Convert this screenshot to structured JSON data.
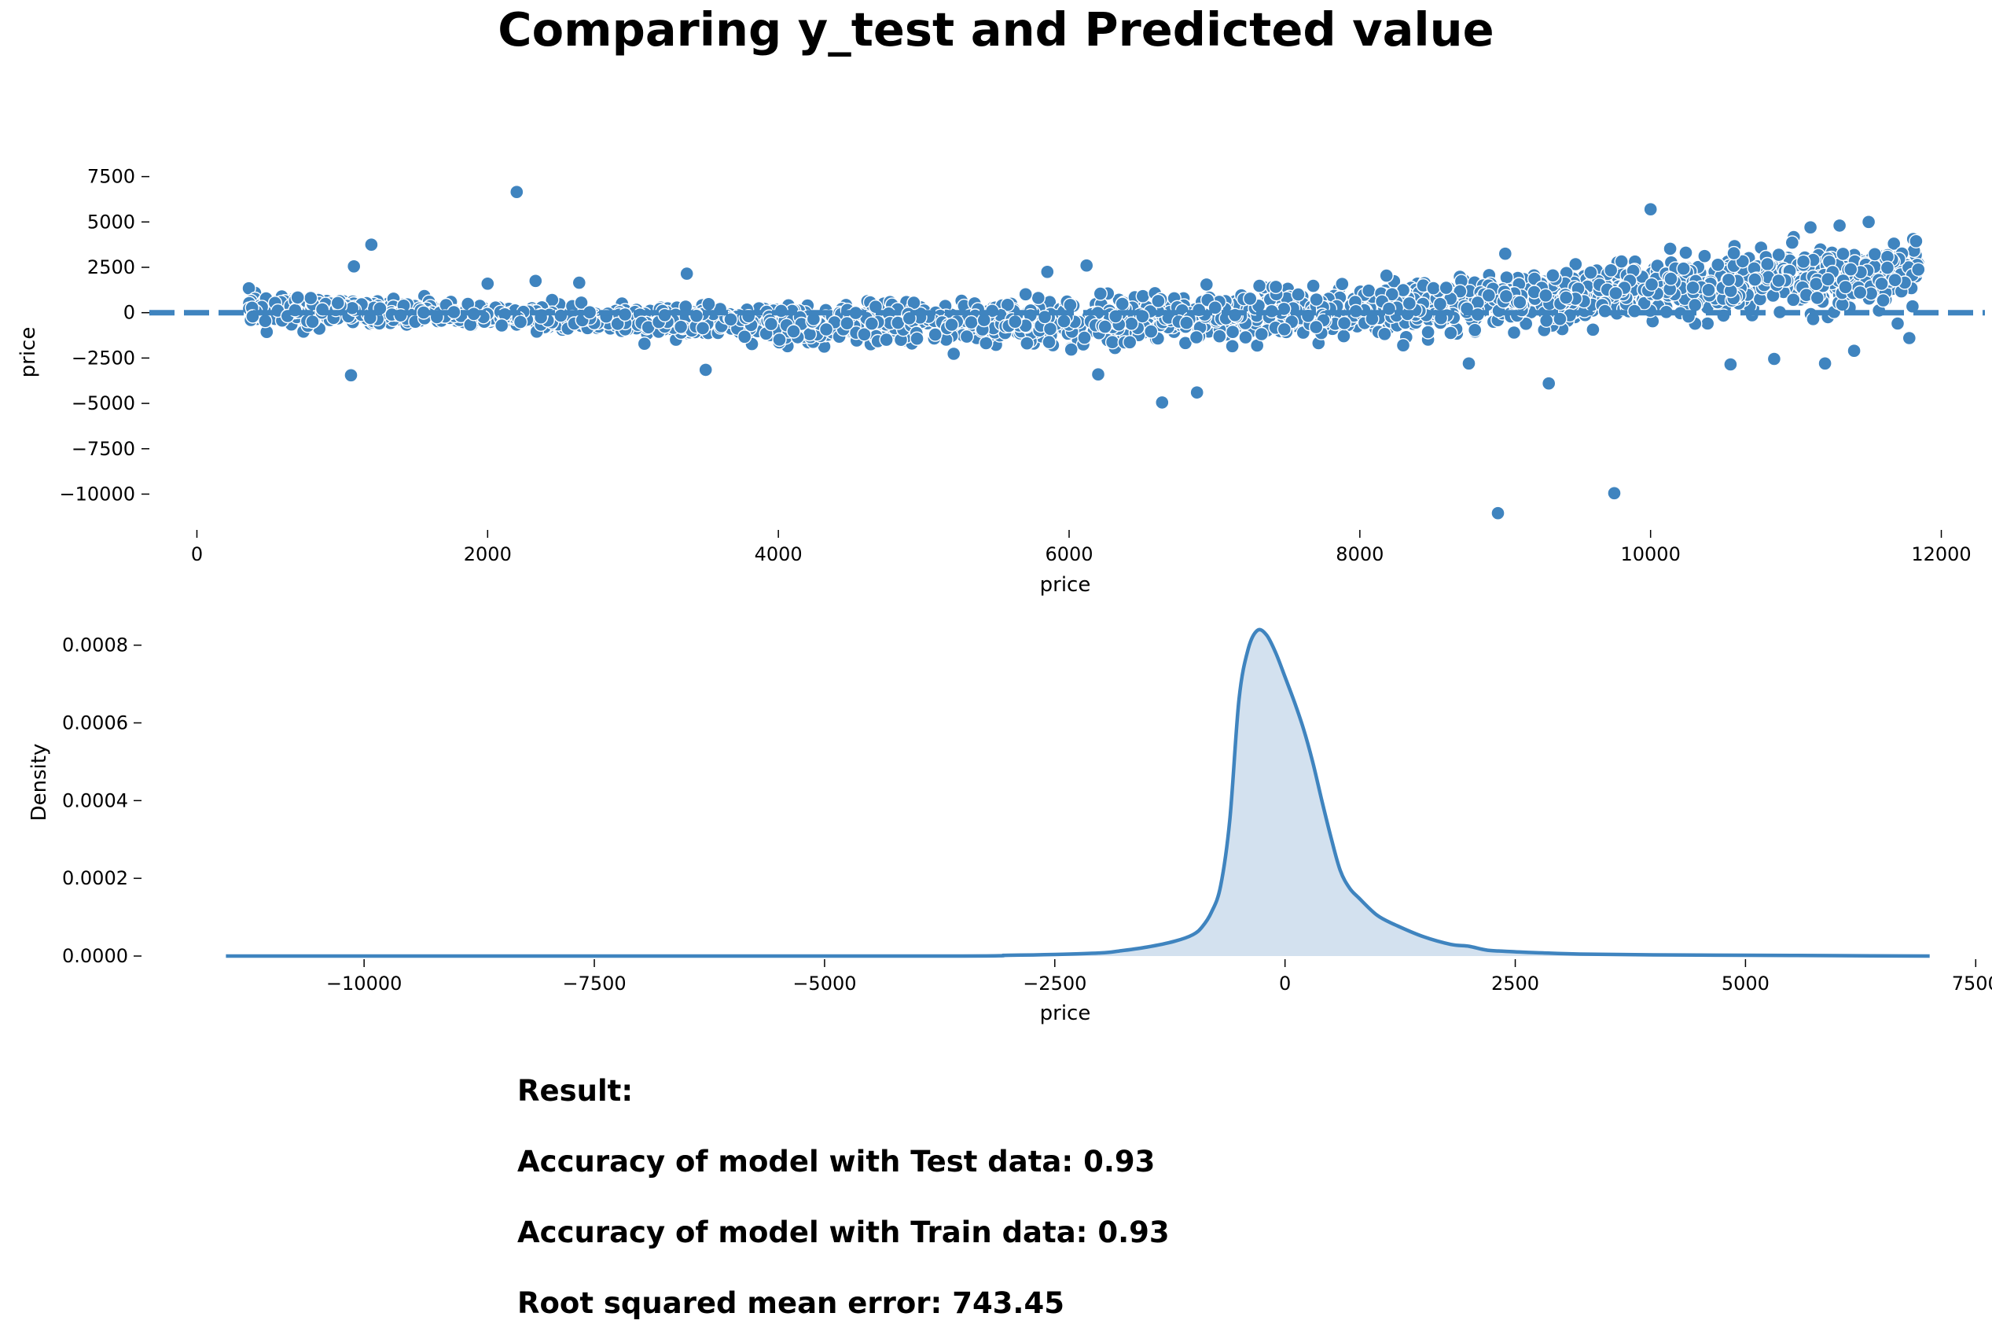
{
  "figure": {
    "title": "Comparing y_test and Predicted value",
    "accent_color": "#3f84bf",
    "fill_color": "#d3e1ef"
  },
  "result": {
    "heading": "Result:",
    "lines": [
      "Accuracy of model with Test data: 0.93",
      "Accuracy of model with Train data: 0.93",
      "Root squared mean error: 743.45"
    ]
  },
  "chart_data": [
    {
      "type": "scatter",
      "title": "",
      "xlabel": "price",
      "ylabel": "price",
      "xlim": [
        -300,
        12300
      ],
      "ylim": [
        -11800,
        9000
      ],
      "xticks": [
        0,
        2000,
        4000,
        6000,
        8000,
        10000,
        12000
      ],
      "yticks": [
        7500,
        5000,
        2500,
        0,
        -2500,
        -5000,
        -7500,
        -10000
      ],
      "xtick_labels": [
        "0",
        "2000",
        "4000",
        "6000",
        "8000",
        "10000",
        "12000"
      ],
      "ytick_labels": [
        "7500",
        "5000",
        "2500",
        "0",
        "−2500",
        "−5000",
        "−7500",
        "−10000"
      ],
      "reference_line": {
        "y": 0,
        "style": "dashed"
      },
      "grid": false,
      "trend_envelope": {
        "x": [
          350,
          1000,
          2000,
          3000,
          4000,
          5000,
          6000,
          7000,
          8000,
          9000,
          10000,
          11000,
          11850
        ],
        "center": [
          300,
          100,
          -150,
          -450,
          -650,
          -600,
          -500,
          -250,
          200,
          600,
          1300,
          1800,
          2200
        ],
        "spread": [
          700,
          650,
          500,
          650,
          900,
          1000,
          1100,
          1050,
          1100,
          1300,
          1400,
          1500,
          1600
        ]
      },
      "outliers": [
        {
          "x": 2200,
          "y": 6650
        },
        {
          "x": 1200,
          "y": 3750
        },
        {
          "x": 1060,
          "y": -3450
        },
        {
          "x": 3370,
          "y": 2150
        },
        {
          "x": 3500,
          "y": -3150
        },
        {
          "x": 5850,
          "y": 2250
        },
        {
          "x": 6120,
          "y": 2600
        },
        {
          "x": 6200,
          "y": -3400
        },
        {
          "x": 6640,
          "y": -4950
        },
        {
          "x": 6880,
          "y": -4400
        },
        {
          "x": 8950,
          "y": -11050
        },
        {
          "x": 9750,
          "y": -9950
        },
        {
          "x": 9300,
          "y": -3900
        },
        {
          "x": 10000,
          "y": 5700
        },
        {
          "x": 11300,
          "y": 4800
        },
        {
          "x": 11500,
          "y": 5000
        },
        {
          "x": 11200,
          "y": -2800
        },
        {
          "x": 10550,
          "y": -2850
        },
        {
          "x": 10850,
          "y": -2550
        },
        {
          "x": 11400,
          "y": -2100
        },
        {
          "x": 2330,
          "y": 1750
        },
        {
          "x": 2630,
          "y": 1650
        },
        {
          "x": 2000,
          "y": 1600
        },
        {
          "x": 1080,
          "y": 2550
        },
        {
          "x": 8750,
          "y": -2800
        },
        {
          "x": 9000,
          "y": 3250
        },
        {
          "x": 11100,
          "y": 4700
        },
        {
          "x": 11780,
          "y": -1400
        },
        {
          "x": 11700,
          "y": -600
        }
      ]
    },
    {
      "type": "area",
      "title": "",
      "xlabel": "price",
      "ylabel": "Density",
      "xlim": [
        -12400,
        7600
      ],
      "ylim": [
        0,
        0.00087
      ],
      "xticks": [
        -10000,
        -7500,
        -5000,
        -2500,
        0,
        2500,
        5000,
        7500
      ],
      "xtick_labels": [
        "−10000",
        "−7500",
        "−5000",
        "−2500",
        "0",
        "2500",
        "5000",
        "7500"
      ],
      "yticks": [
        0.0,
        0.0002,
        0.0004,
        0.0006,
        0.0008
      ],
      "ytick_labels": [
        "0.0000",
        "0.0002",
        "0.0004",
        "0.0006",
        "0.0008"
      ],
      "grid": false,
      "x": [
        -11500,
        -4000,
        -3000,
        -2500,
        -2000,
        -1800,
        -1500,
        -1200,
        -1000,
        -900,
        -800,
        -700,
        -600,
        -500,
        -400,
        -300,
        -200,
        -100,
        0,
        100,
        200,
        300,
        400,
        500,
        600,
        700,
        800,
        1000,
        1200,
        1500,
        1800,
        2000,
        2200,
        2500,
        2800,
        3200,
        4000,
        5000,
        6000,
        7000
      ],
      "y": [
        0.0,
        0.0,
        2e-06,
        4e-06,
        8e-06,
        1.3e-05,
        2.3e-05,
        3.8e-05,
        5.5e-05,
        7.5e-05,
        0.000112,
        0.00018,
        0.00035,
        0.00066,
        0.00079,
        0.000838,
        0.000826,
        0.00078,
        0.000718,
        0.000655,
        0.000585,
        0.0005,
        0.0004,
        0.000305,
        0.00022,
        0.000175,
        0.00015,
        0.000105,
        8e-05,
        5e-05,
        3e-05,
        2.5e-05,
        1.5e-05,
        1.1e-05,
        8e-06,
        5e-06,
        3e-06,
        2e-06,
        1e-06,
        0.0
      ]
    }
  ]
}
